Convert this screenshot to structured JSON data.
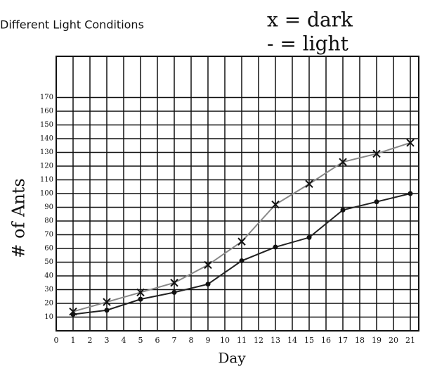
{
  "chart_data": {
    "type": "line",
    "title": "Different Light Conditions",
    "x_label": "Day",
    "y_label": "# of Ants",
    "x": [
      1,
      3,
      5,
      7,
      9,
      11,
      13,
      15,
      17,
      19,
      21
    ],
    "series": [
      {
        "name": "x = dark",
        "color": "#888888",
        "marker": "x",
        "values": [
          14,
          21,
          28,
          35,
          48,
          65,
          92,
          107,
          123,
          129,
          137
        ]
      },
      {
        "name": "- = light",
        "color": "#222222",
        "marker": "dot",
        "values": [
          12,
          15,
          23,
          28,
          34,
          51,
          61,
          68,
          88,
          94,
          100
        ]
      }
    ],
    "xlim": [
      0,
      21.5
    ],
    "xticks": [
      0,
      1,
      2,
      3,
      4,
      5,
      6,
      7,
      8,
      9,
      10,
      11,
      12,
      13,
      14,
      15,
      16,
      17,
      18,
      19,
      20,
      21
    ],
    "ylim": [
      0,
      200
    ],
    "yticks": [
      10,
      20,
      30,
      40,
      50,
      60,
      70,
      80,
      90,
      100,
      110,
      120,
      130,
      140,
      150,
      160,
      170
    ],
    "grid": true
  }
}
